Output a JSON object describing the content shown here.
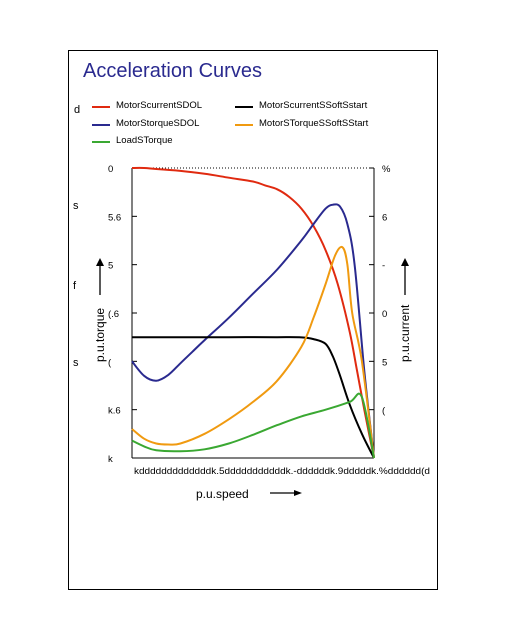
{
  "title": "Acceleration Curves",
  "legend": [
    {
      "label": "MotorScurrentSDOL",
      "color": "#e02a10"
    },
    {
      "label": "MotorScurrentSSoftSstart",
      "color": "#000000"
    },
    {
      "label": "MotorStorqueSDOL",
      "color": "#2a2a8f"
    },
    {
      "label": "MotorSTorqueSSoftSStart",
      "color": "#f09a10"
    },
    {
      "label": "LoadSTorque",
      "color": "#3aa832"
    }
  ],
  "side_chars": [
    "d",
    "s",
    "f",
    "s"
  ],
  "chart_data": {
    "type": "line",
    "xlabel": "p.u.speed",
    "ylabel_left": "p.u.torque",
    "ylabel_right": "p.u.current",
    "left_ticks": [
      "0",
      "5.6",
      "5",
      "(.6",
      "(",
      "k.6",
      "k"
    ],
    "right_ticks": [
      "%",
      "6",
      "-",
      "0",
      "5",
      "(",
      ""
    ],
    "x_ticks": [
      "kdddddddddddddk.5dddddddddddk.-ddddddk.9dddddk.%dddddd(d"
    ],
    "xlim": [
      0,
      1
    ],
    "ylim": [
      0,
      3
    ],
    "series": [
      {
        "name": "MotorScurrentSDOL",
        "color": "#e02a10",
        "points": [
          [
            0,
            3
          ],
          [
            0.05,
            3
          ],
          [
            0.1,
            2.99
          ],
          [
            0.2,
            2.97
          ],
          [
            0.3,
            2.94
          ],
          [
            0.4,
            2.9
          ],
          [
            0.5,
            2.86
          ],
          [
            0.55,
            2.82
          ],
          [
            0.6,
            2.78
          ],
          [
            0.65,
            2.7
          ],
          [
            0.7,
            2.58
          ],
          [
            0.75,
            2.4
          ],
          [
            0.8,
            2.15
          ],
          [
            0.85,
            1.8
          ],
          [
            0.9,
            1.3
          ],
          [
            0.93,
            0.9
          ],
          [
            0.96,
            0.5
          ],
          [
            1,
            0
          ]
        ]
      },
      {
        "name": "MotorStorqueSDOL",
        "color": "#2a2a8f",
        "points": [
          [
            0,
            1
          ],
          [
            0.05,
            0.85
          ],
          [
            0.1,
            0.8
          ],
          [
            0.15,
            0.86
          ],
          [
            0.2,
            0.98
          ],
          [
            0.25,
            1.1
          ],
          [
            0.3,
            1.22
          ],
          [
            0.4,
            1.45
          ],
          [
            0.5,
            1.7
          ],
          [
            0.6,
            1.95
          ],
          [
            0.7,
            2.25
          ],
          [
            0.75,
            2.42
          ],
          [
            0.8,
            2.58
          ],
          [
            0.83,
            2.62
          ],
          [
            0.86,
            2.6
          ],
          [
            0.89,
            2.42
          ],
          [
            0.92,
            2.0
          ],
          [
            0.96,
            0.9
          ],
          [
            1,
            0
          ]
        ]
      },
      {
        "name": "MotorScurrentSSoftSstart",
        "color": "#000000",
        "points": [
          [
            0,
            1.25
          ],
          [
            0.2,
            1.25
          ],
          [
            0.4,
            1.25
          ],
          [
            0.6,
            1.25
          ],
          [
            0.7,
            1.248
          ],
          [
            0.75,
            1.23
          ],
          [
            0.8,
            1.18
          ],
          [
            0.83,
            1.05
          ],
          [
            0.86,
            0.85
          ],
          [
            0.9,
            0.55
          ],
          [
            0.95,
            0.25
          ],
          [
            1,
            0
          ]
        ]
      },
      {
        "name": "MotorSTorqueSSoftSStart",
        "color": "#f09a10",
        "points": [
          [
            0,
            0.3
          ],
          [
            0.05,
            0.2
          ],
          [
            0.1,
            0.15
          ],
          [
            0.15,
            0.14
          ],
          [
            0.2,
            0.15
          ],
          [
            0.3,
            0.25
          ],
          [
            0.4,
            0.4
          ],
          [
            0.5,
            0.58
          ],
          [
            0.6,
            0.8
          ],
          [
            0.7,
            1.15
          ],
          [
            0.75,
            1.45
          ],
          [
            0.8,
            1.8
          ],
          [
            0.84,
            2.1
          ],
          [
            0.87,
            2.18
          ],
          [
            0.89,
            2.0
          ],
          [
            0.91,
            1.5
          ],
          [
            0.95,
            1.0
          ],
          [
            1,
            0
          ]
        ]
      },
      {
        "name": "LoadSTorque",
        "color": "#3aa832",
        "points": [
          [
            0,
            0.18
          ],
          [
            0.05,
            0.12
          ],
          [
            0.1,
            0.08
          ],
          [
            0.2,
            0.07
          ],
          [
            0.3,
            0.09
          ],
          [
            0.4,
            0.15
          ],
          [
            0.5,
            0.24
          ],
          [
            0.6,
            0.34
          ],
          [
            0.7,
            0.43
          ],
          [
            0.8,
            0.5
          ],
          [
            0.9,
            0.58
          ],
          [
            0.95,
            0.63
          ],
          [
            1,
            0
          ]
        ]
      }
    ]
  }
}
